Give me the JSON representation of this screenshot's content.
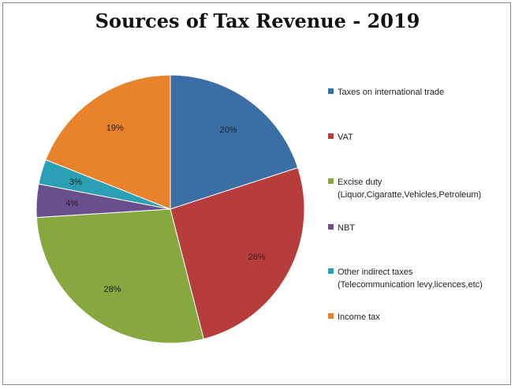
{
  "chart_data": {
    "type": "pie",
    "title": "Sources of Tax Revenue - 2019",
    "slices": [
      {
        "name": "Taxes on international trade",
        "name_detail": "",
        "value": 20,
        "label": "20%",
        "color": "#3a6ea5"
      },
      {
        "name": "VAT",
        "name_detail": "",
        "value": 26,
        "label": "26%",
        "color": "#b73d3d"
      },
      {
        "name": "Excise duty",
        "name_detail": "(Liquor,Cigaratte,Vehicles,Petroleum)",
        "value": 28,
        "label": "28%",
        "color": "#86a83f"
      },
      {
        "name": "NBT",
        "name_detail": "",
        "value": 4,
        "label": "4%",
        "color": "#6a4f8f"
      },
      {
        "name": "Other indirect taxes",
        "name_detail": "(Telecommunication levy,licences,etc)",
        "value": 3,
        "label": "3%",
        "color": "#2ba0b5"
      },
      {
        "name": "Income tax",
        "name_detail": "",
        "value": 19,
        "label": "19%",
        "color": "#e8832c"
      }
    ],
    "legend_position": "right",
    "start_angle": "12 o'clock",
    "direction": "clockwise"
  }
}
